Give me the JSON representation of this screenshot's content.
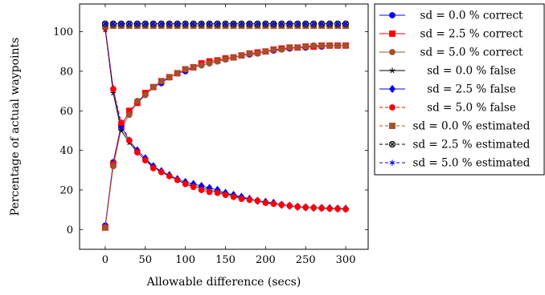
{
  "chart_data": {
    "type": "line",
    "xlabel": "Allowable difference (secs)",
    "ylabel": "Percentage of actual waypoints",
    "xlim": [
      -32,
      328
    ],
    "ylim": [
      -10,
      114
    ],
    "xticks": [
      0,
      50,
      100,
      150,
      200,
      250,
      300
    ],
    "yticks": [
      0,
      20,
      40,
      60,
      80,
      100
    ],
    "grid": false,
    "legend_position": "outside-right",
    "x": [
      0,
      10,
      20,
      30,
      40,
      50,
      60,
      70,
      80,
      90,
      100,
      110,
      120,
      130,
      140,
      150,
      160,
      170,
      180,
      190,
      200,
      210,
      220,
      230,
      240,
      250,
      260,
      270,
      280,
      290,
      300
    ],
    "series": [
      {
        "name": "sd = 0.0 % correct",
        "color": "#0000ff",
        "marker": "circle",
        "dash": "solid",
        "values": [
          2,
          34,
          53,
          59,
          64,
          68,
          72,
          74,
          77,
          79,
          80,
          82,
          83,
          84,
          85,
          86,
          87,
          88,
          88.5,
          89,
          90,
          90.5,
          91,
          91.5,
          92,
          92,
          92.5,
          92.5,
          93,
          93,
          93
        ]
      },
      {
        "name": "sd = 2.5 % correct",
        "color": "#ff0000",
        "marker": "square",
        "dash": "solid",
        "values": [
          1,
          33,
          52,
          60,
          64,
          69,
          72,
          75,
          77,
          79,
          81,
          82,
          84,
          85,
          85.5,
          86.5,
          87,
          88,
          89,
          89.5,
          90,
          91,
          91.5,
          92,
          92,
          92.5,
          92.5,
          93,
          93,
          93,
          93
        ]
      },
      {
        "name": "sd = 5.0 % correct",
        "color": "#a0522d",
        "marker": "circle",
        "dash": "solid",
        "values": [
          1,
          32,
          51,
          58,
          65,
          68,
          72,
          75,
          77,
          79,
          81,
          82,
          83,
          84,
          85,
          86,
          87,
          88,
          89,
          89,
          90,
          91,
          91,
          92,
          92,
          92.5,
          93,
          93,
          93,
          93,
          93
        ]
      },
      {
        "name": "sd = 0.0 % false",
        "color": "#000000",
        "marker": "star",
        "dash": "solid",
        "values": [
          101,
          69,
          50,
          44,
          39,
          35,
          32,
          29,
          27,
          25,
          23,
          22,
          21,
          20,
          19,
          18,
          17,
          16,
          15.5,
          14.5,
          13.5,
          13,
          12.5,
          12,
          11.5,
          11.2,
          11,
          10.8,
          10.6,
          10.5,
          10.3
        ]
      },
      {
        "name": "sd = 2.5 % false",
        "color": "#0000ff",
        "marker": "diamond",
        "dash": "solid",
        "values": [
          102,
          71,
          52,
          45,
          40,
          36,
          32,
          29.5,
          27.5,
          25.5,
          24,
          23,
          22,
          21,
          20,
          18.5,
          17.5,
          16.5,
          15.5,
          14.5,
          14,
          13.5,
          12.5,
          12,
          11.5,
          11.2,
          11,
          10.9,
          10.8,
          10.6,
          10.5
        ]
      },
      {
        "name": "sd = 5.0 % false",
        "color": "#ff0000",
        "marker": "circle",
        "dash": "dashed",
        "values": [
          102,
          71,
          54,
          45,
          39,
          35,
          31,
          29,
          27,
          25,
          23,
          21.5,
          20,
          19,
          18.5,
          17.5,
          16.5,
          15.5,
          15,
          14.5,
          13.5,
          13,
          12.5,
          12,
          11.5,
          11.2,
          11,
          10.8,
          10.6,
          10.5,
          10.3
        ]
      },
      {
        "name": "sd = 0.0 % estimated",
        "color": "#a0522d",
        "marker": "square",
        "dash": "dashed",
        "values": [
          103,
          103,
          103,
          103,
          103,
          103,
          103,
          103,
          103,
          103,
          103,
          103,
          103,
          103,
          103,
          103,
          103,
          103,
          103,
          103,
          103,
          103,
          103,
          103,
          103,
          103,
          103,
          103,
          103,
          103,
          103
        ]
      },
      {
        "name": "sd = 2.5 % estimated",
        "color": "#000000",
        "marker": "otimes",
        "dash": "dashed",
        "values": [
          104,
          104,
          104,
          104,
          104,
          104,
          104,
          104,
          104,
          104,
          104,
          104,
          104,
          104,
          104,
          104,
          104,
          104,
          104,
          104,
          104,
          104,
          104,
          104,
          104,
          104,
          104,
          104,
          104,
          104,
          104
        ]
      },
      {
        "name": "sd = 5.0 % estimated",
        "color": "#0000ff",
        "marker": "asterisk",
        "dash": "dashed",
        "values": [
          104,
          104,
          104,
          104,
          104,
          104,
          104,
          104,
          104,
          104,
          104,
          104,
          104,
          104,
          104,
          104,
          104,
          104,
          104,
          104,
          104,
          104,
          104,
          104,
          104,
          104,
          104,
          104,
          104,
          104,
          104
        ]
      }
    ]
  }
}
